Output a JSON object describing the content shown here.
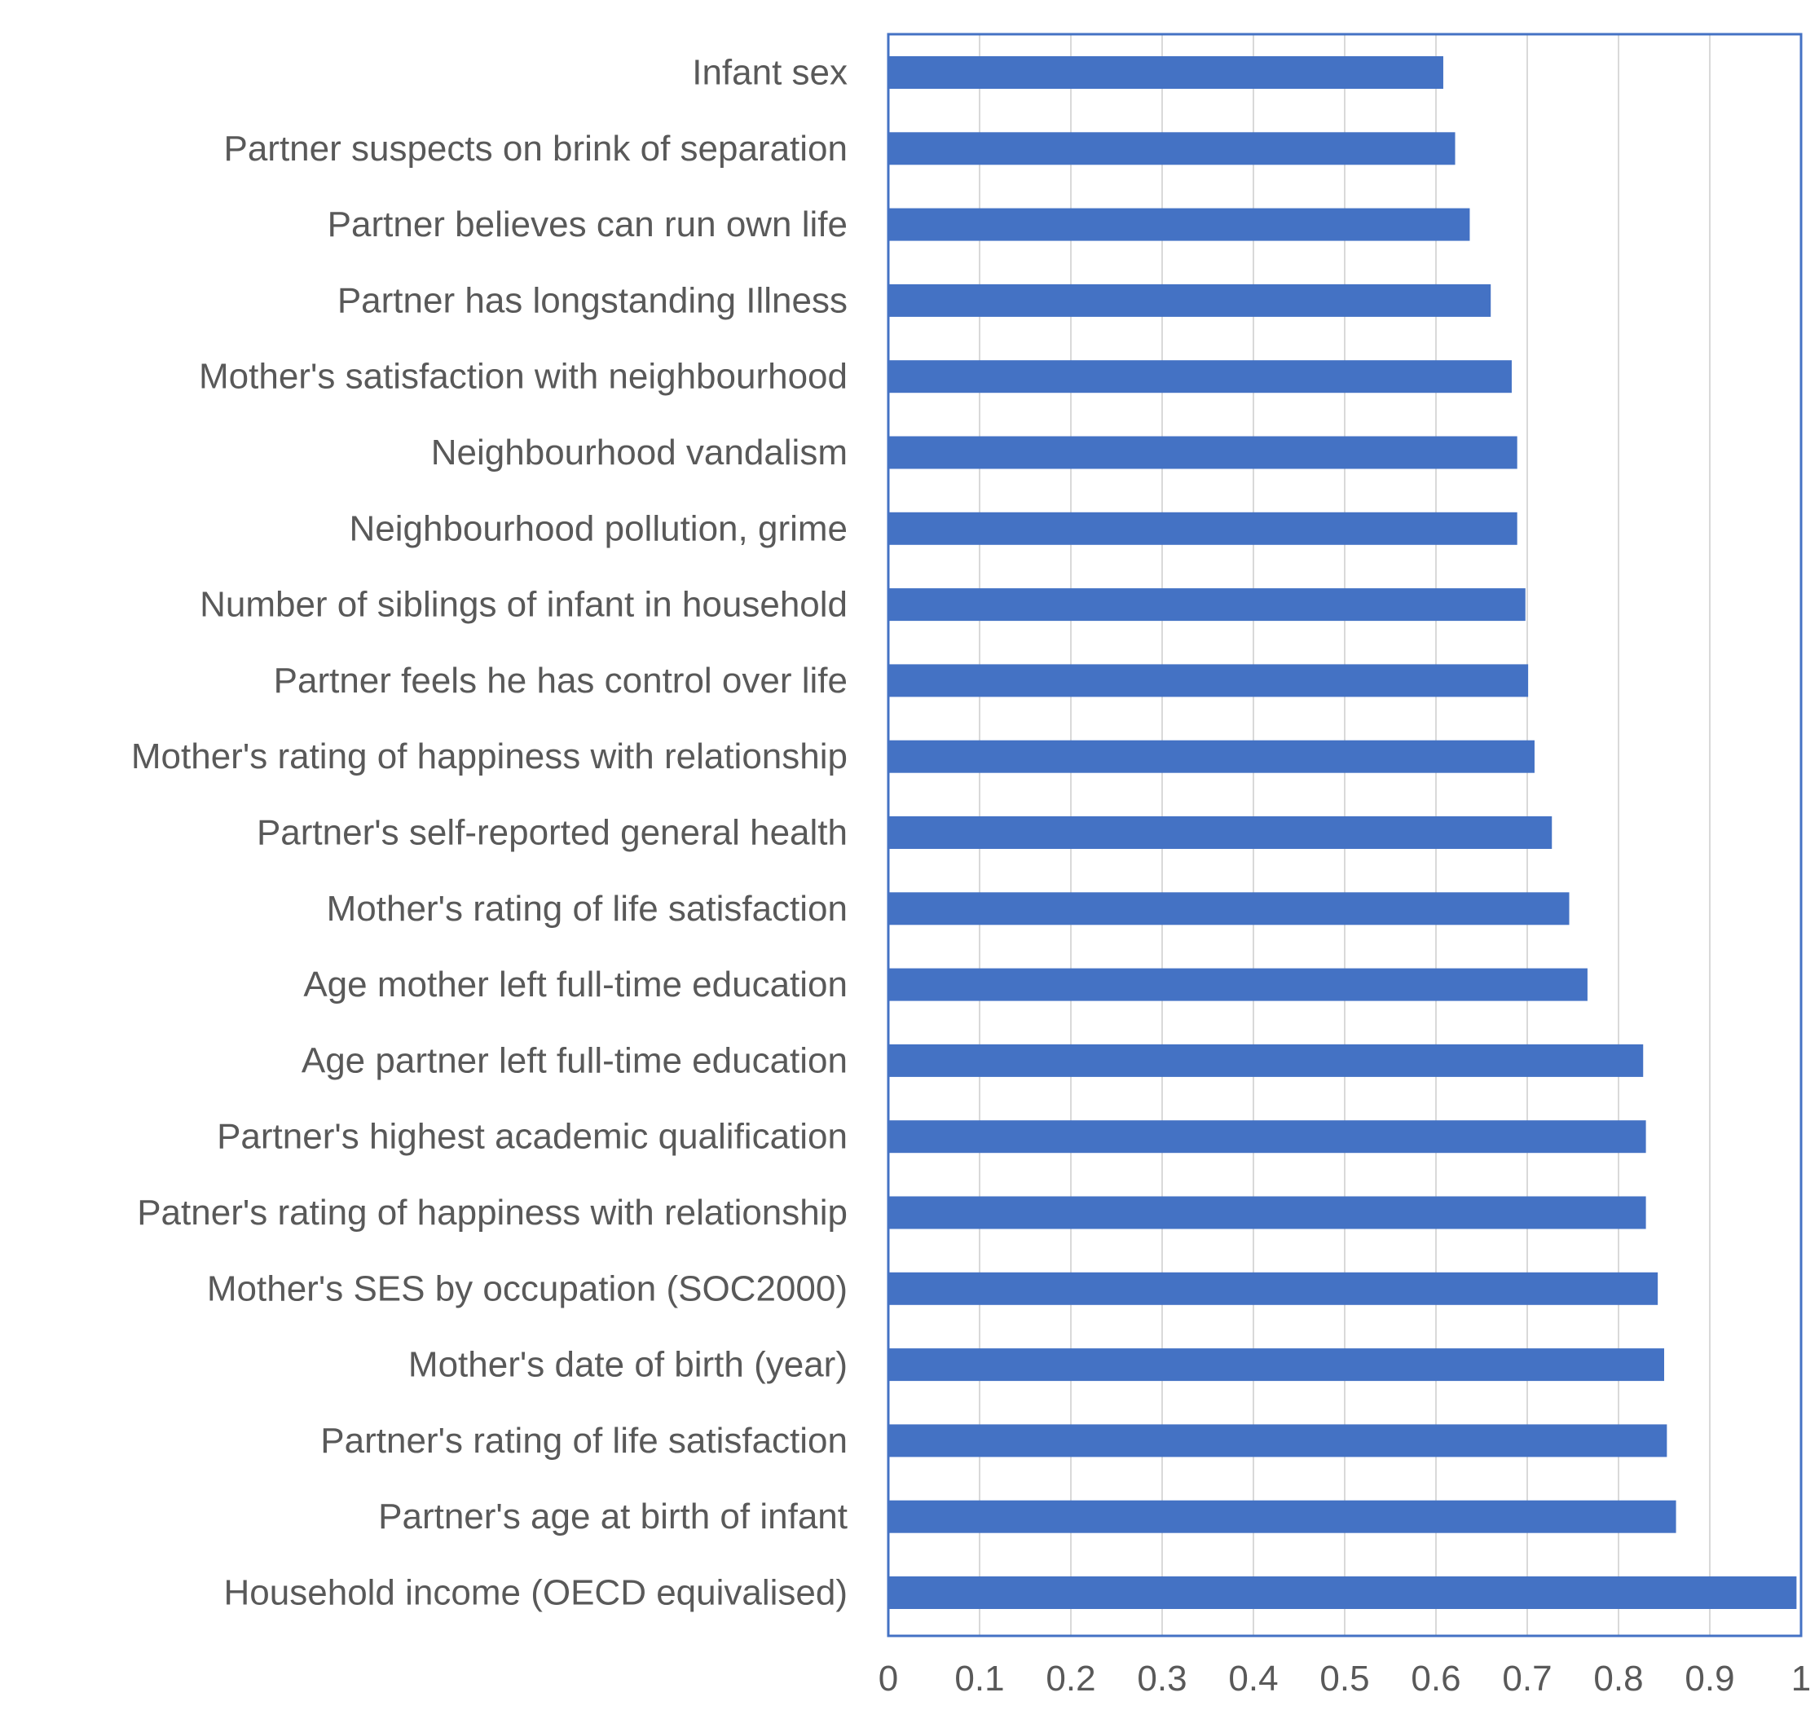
{
  "chart_data": {
    "type": "bar",
    "orientation": "horizontal",
    "title": "",
    "xlabel": "",
    "ylabel": "",
    "xlim": [
      0,
      1
    ],
    "ticks": [
      "0",
      "0.1",
      "0.2",
      "0.3",
      "0.4",
      "0.5",
      "0.6",
      "0.7",
      "0.8",
      "0.9",
      "1"
    ],
    "tick_values": [
      0,
      0.1,
      0.2,
      0.3,
      0.4,
      0.5,
      0.6,
      0.7,
      0.8,
      0.9,
      1
    ],
    "grid": true,
    "legend": "none",
    "bar_color": "#4472C4",
    "axis_color": "#4472C4",
    "grid_color": "#D9D9D9",
    "text_color": "#595959",
    "categories": [
      "Infant sex",
      "Partner suspects on brink of separation",
      "Partner believes can run own life",
      "Partner has longstanding Illness",
      "Mother's satisfaction with neighbourhood",
      "Neighbourhood vandalism",
      "Neighbourhood pollution, grime",
      "Number of siblings of infant in household",
      "Partner feels he has control over life",
      "Mother's rating of happiness with relationship",
      "Partner's self-reported general health",
      "Mother's rating of life satisfaction",
      "Age mother left full-time education",
      "Age partner left full-time education",
      "Partner's highest academic qualification",
      "Patner's rating of happiness with relationship",
      "Mother's SES by occupation (SOC2000)",
      "Mother's date of birth (year)",
      "Partner's rating of life satisfaction",
      "Partner's age at birth of infant",
      "Household income (OECD equivalised)"
    ],
    "values": [
      0.608,
      0.621,
      0.637,
      0.66,
      0.683,
      0.689,
      0.689,
      0.698,
      0.701,
      0.708,
      0.727,
      0.746,
      0.766,
      0.827,
      0.83,
      0.83,
      0.843,
      0.85,
      0.853,
      0.863,
      0.995
    ]
  }
}
